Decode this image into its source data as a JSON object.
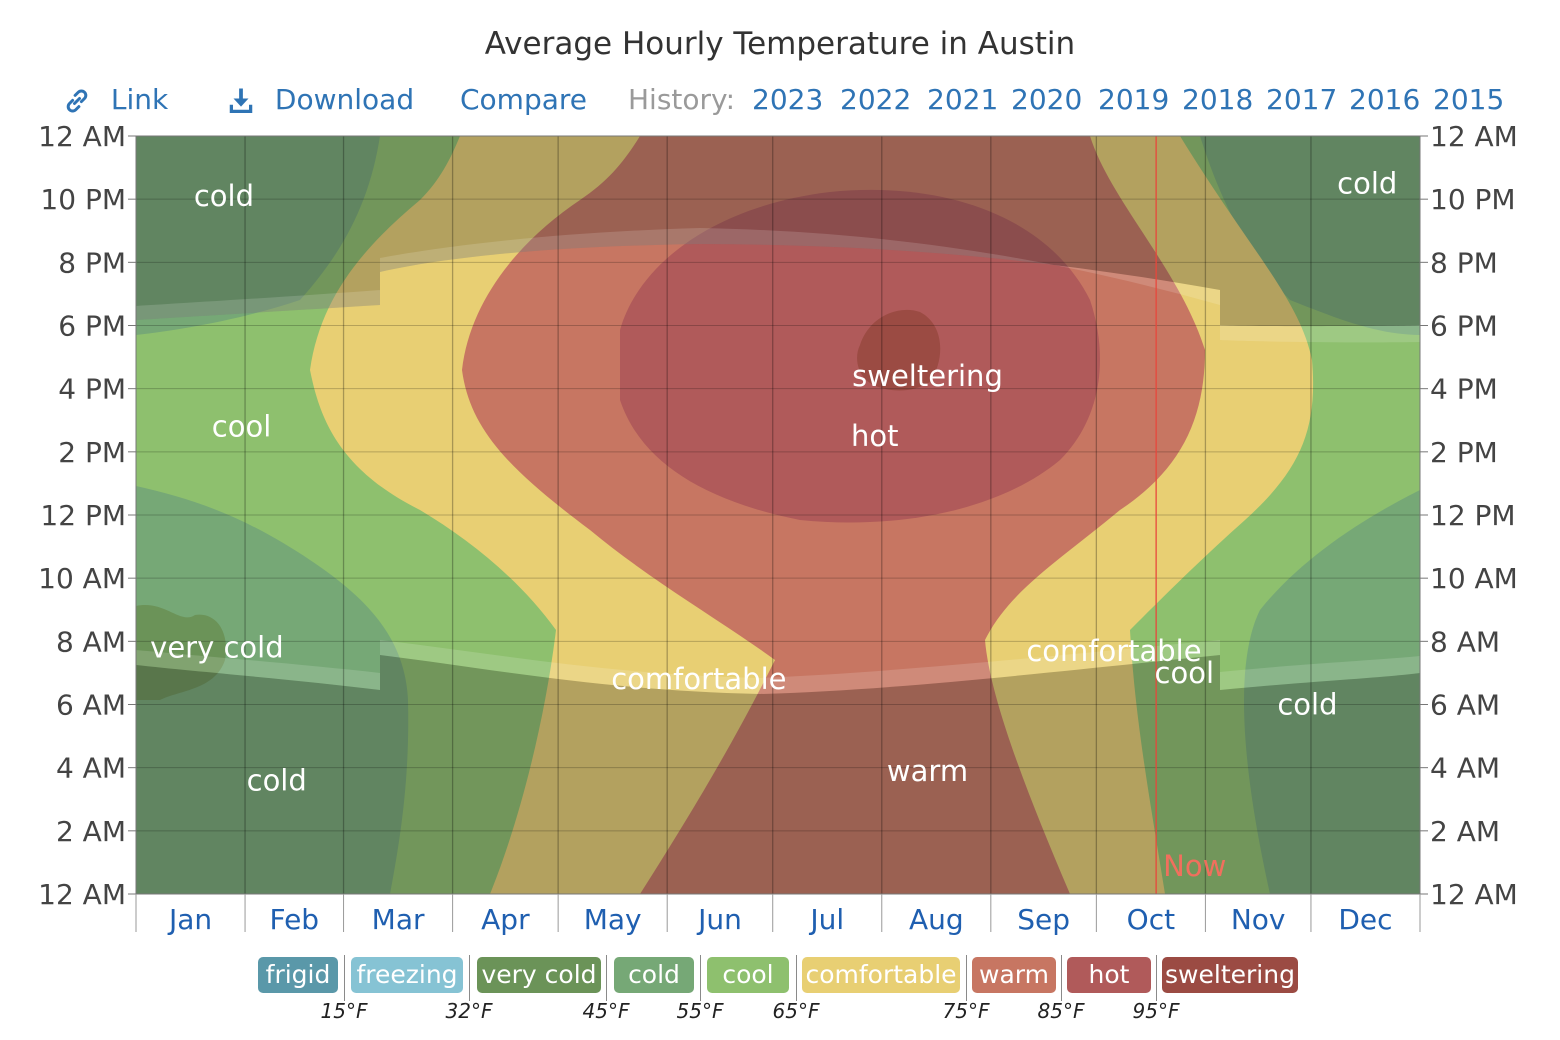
{
  "title": "Average Hourly Temperature in Austin",
  "toolbar": {
    "link_label": "Link",
    "link_icon": "link-icon",
    "download_label": "Download",
    "download_icon": "download-icon",
    "compare_label": "Compare",
    "history_label": "History:",
    "history_years": [
      "2023",
      "2022",
      "2021",
      "2020",
      "2019",
      "2018",
      "2017",
      "2016",
      "2015"
    ],
    "link_color": "#2f74b5"
  },
  "chart_data": {
    "type": "heatmap",
    "title": "Average Hourly Temperature in Austin",
    "x_months": [
      "Jan",
      "Feb",
      "Mar",
      "Apr",
      "May",
      "Jun",
      "Jul",
      "Aug",
      "Sep",
      "Oct",
      "Nov",
      "Dec"
    ],
    "y_ticks": [
      "12 AM",
      "2 AM",
      "4 AM",
      "6 AM",
      "8 AM",
      "10 AM",
      "12 PM",
      "2 PM",
      "4 PM",
      "6 PM",
      "8 PM",
      "10 PM",
      "12 AM"
    ],
    "ylim_hours": [
      0,
      24
    ],
    "grid": true,
    "now_marker": {
      "label": "Now",
      "day_of_year": 290
    },
    "zone_labels": [
      {
        "text": "cold",
        "day": 25,
        "hour": 22.1
      },
      {
        "text": "cold",
        "day": 350,
        "hour": 22.5
      },
      {
        "text": "cool",
        "day": 30,
        "hour": 14.8
      },
      {
        "text": "very cold",
        "day": 23,
        "hour": 7.8
      },
      {
        "text": "cold",
        "day": 40,
        "hour": 3.6
      },
      {
        "text": "sweltering",
        "day": 225,
        "hour": 16.4
      },
      {
        "text": "hot",
        "day": 210,
        "hour": 14.5
      },
      {
        "text": "comfortable",
        "day": 160,
        "hour": 6.8
      },
      {
        "text": "comfortable",
        "day": 278,
        "hour": 7.7
      },
      {
        "text": "cool",
        "day": 298,
        "hour": 7.0
      },
      {
        "text": "cold",
        "day": 333,
        "hour": 6.0
      },
      {
        "text": "warm",
        "day": 225,
        "hour": 3.9
      }
    ],
    "bands": [
      {
        "name": "frigid",
        "color": "#5a98a9"
      },
      {
        "name": "freezing",
        "color": "#86c3d4"
      },
      {
        "name": "very cold",
        "color": "#6b9358"
      },
      {
        "name": "cold",
        "color": "#76a876"
      },
      {
        "name": "cool",
        "color": "#8ec06e"
      },
      {
        "name": "comfortable",
        "color": "#e8cf73"
      },
      {
        "name": "warm",
        "color": "#c77662"
      },
      {
        "name": "hot",
        "color": "#b05a5a"
      },
      {
        "name": "sweltering",
        "color": "#9b4b43"
      }
    ],
    "thresholds": [
      "15°F",
      "32°F",
      "45°F",
      "55°F",
      "65°F",
      "75°F",
      "85°F",
      "95°F"
    ]
  }
}
